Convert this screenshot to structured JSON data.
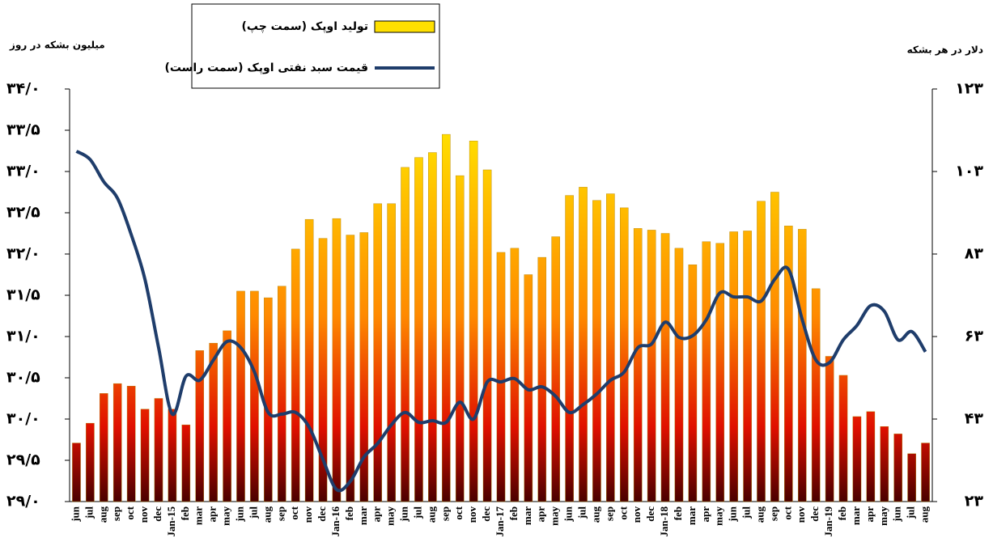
{
  "chart_data": {
    "type": "bar-line",
    "legend": "top",
    "y_label": "میلیون بشکه در روز",
    "y2_label": "دلار در هر بشکه",
    "categories": [
      "jun",
      "jul",
      "aug",
      "sep",
      "oct",
      "nov",
      "dec",
      "Jan-15",
      "feb",
      "mar",
      "apr",
      "may",
      "jun",
      "jul",
      "aug",
      "sep",
      "oct",
      "nov",
      "dec",
      "Jan-16",
      "feb",
      "mar",
      "apr",
      "may",
      "jun",
      "jul",
      "aug",
      "sep",
      "oct",
      "nov",
      "dec",
      "Jan-17",
      "feb",
      "mar",
      "apr",
      "may",
      "jun",
      "jul",
      "aug",
      "sep",
      "oct",
      "nov",
      "dec",
      "Jan-18",
      "feb",
      "mar",
      "apr",
      "may",
      "jun",
      "jul",
      "aug",
      "sep",
      "oct",
      "nov",
      "dec",
      "Jan-19",
      "feb",
      "mar",
      "apr",
      "may",
      "jun",
      "jul",
      "aug"
    ],
    "series": [
      {
        "name": "تولید اوپک (سمت چپ)",
        "type": "bar",
        "color": "#ffe000",
        "values": [
          29.71,
          29.95,
          30.31,
          30.43,
          30.4,
          30.12,
          30.25,
          30.12,
          29.93,
          30.83,
          30.92,
          31.07,
          31.55,
          31.55,
          31.47,
          31.61,
          32.06,
          32.42,
          32.19,
          32.43,
          32.23,
          32.26,
          32.61,
          32.61,
          33.05,
          33.17,
          33.23,
          33.45,
          32.95,
          33.37,
          33.02,
          32.02,
          32.07,
          31.75,
          31.96,
          32.21,
          32.71,
          32.81,
          32.65,
          32.73,
          32.56,
          32.31,
          32.29,
          32.25,
          32.07,
          31.87,
          32.15,
          32.13,
          32.27,
          32.28,
          32.64,
          32.75,
          32.34,
          32.3,
          31.58,
          30.76,
          30.53,
          30.03,
          30.09,
          29.91,
          29.82,
          29.58,
          29.71
        ]
      },
      {
        "name": "قیمت سبد نفتی اوپک (سمت راست)",
        "type": "line",
        "axis": "y2",
        "color": "#1f3d6b",
        "values": [
          107.9,
          105.9,
          100.5,
          96.5,
          87.7,
          76.9,
          60.3,
          44.2,
          53.4,
          52.4,
          57.3,
          61.8,
          60.3,
          54.4,
          44.6,
          44.2,
          44.6,
          41,
          33.2,
          25.9,
          27.9,
          33.8,
          37.1,
          41.6,
          44.6,
          42.2,
          42.6,
          42.2,
          47.1,
          43,
          52,
          52,
          52.8,
          50.1,
          50.8,
          48.5,
          44.6,
          46.5,
          49.1,
          52.4,
          54.4,
          60.3,
          61.2,
          66.5,
          62.8,
          63.2,
          67.1,
          73.6,
          72.6,
          72.6,
          71.6,
          76.9,
          79.3,
          67.1,
          57.3,
          56.7,
          62.2,
          65.7,
          70.5,
          69.1,
          62.2,
          64.2,
          59.3
        ]
      }
    ],
    "ylim": [
      29,
      34
    ],
    "yticks": [
      {
        "value": 29,
        "label": "۲۹/۰"
      },
      {
        "value": 29.5,
        "label": "۲۹/۵"
      },
      {
        "value": 30,
        "label": "۳۰/۰"
      },
      {
        "value": 30.5,
        "label": "۳۰/۵"
      },
      {
        "value": 31,
        "label": "۳۱/۰"
      },
      {
        "value": 31.5,
        "label": "۳۱/۵"
      },
      {
        "value": 32,
        "label": "۳۲/۰"
      },
      {
        "value": 32.5,
        "label": "۳۲/۵"
      },
      {
        "value": 33,
        "label": "۳۳/۰"
      },
      {
        "value": 33.5,
        "label": "۳۳/۵"
      },
      {
        "value": 34,
        "label": "۳۴/۰"
      }
    ],
    "y2lim": [
      23,
      123
    ],
    "y2ticks": [
      {
        "value": 23,
        "label": "۲۳"
      },
      {
        "value": 43,
        "label": "۴۳"
      },
      {
        "value": 63,
        "label": "۶۳"
      },
      {
        "value": 83,
        "label": "۸۳"
      },
      {
        "value": 103,
        "label": "۱۰۳"
      },
      {
        "value": 123,
        "label": "۱۲۳"
      }
    ]
  }
}
